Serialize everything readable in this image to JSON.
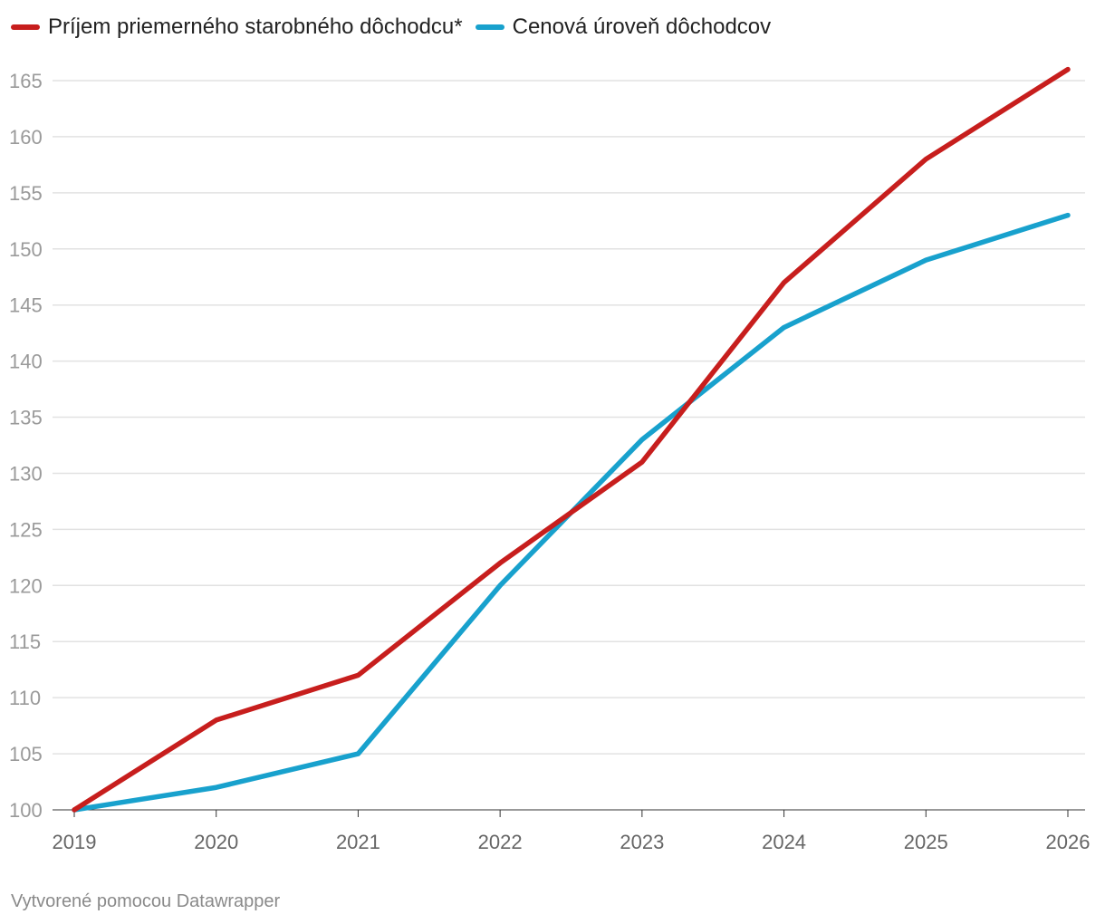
{
  "chart_data": {
    "type": "line",
    "title": "",
    "xlabel": "",
    "ylabel": "",
    "categories": [
      "2019",
      "2020",
      "2021",
      "2022",
      "2023",
      "2024",
      "2025",
      "2026"
    ],
    "y_ticks": [
      "100",
      "105",
      "110",
      "115",
      "120",
      "125",
      "130",
      "135",
      "140",
      "145",
      "150",
      "155",
      "160",
      "165"
    ],
    "ylim": [
      100,
      165
    ],
    "grid": true,
    "legend_position": "top-left",
    "series": [
      {
        "name": "Príjem priemerného starobného dôchodcu*",
        "color": "#c71e1d",
        "values": [
          100,
          108,
          112,
          122,
          131,
          147,
          158,
          166
        ]
      },
      {
        "name": "Cenová úroveň dôchodcov",
        "color": "#18a1cd",
        "values": [
          100,
          102,
          105,
          120,
          133,
          143,
          149,
          153
        ]
      }
    ]
  },
  "footer": {
    "credit": "Vytvorené pomocou Datawrapper"
  }
}
